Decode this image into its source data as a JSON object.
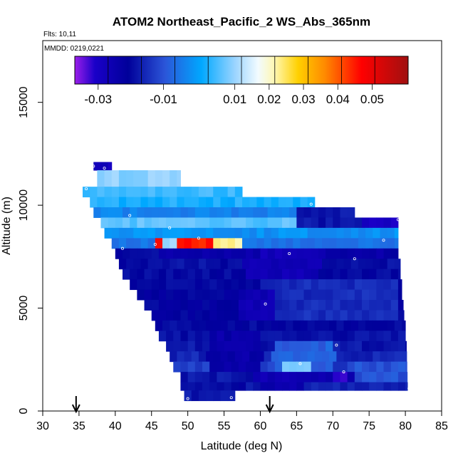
{
  "chart_data": {
    "type": "heatmap",
    "title": "ATOM2 Northeast_Pacific_2 WS_Abs_365nm",
    "flights_note": "Flts: 10,11",
    "date_note": "MMDD: 0219,0221",
    "xlabel": "Latitude (deg N)",
    "ylabel": "Altitude (m)",
    "xlim": [
      30,
      85
    ],
    "ylim": [
      0,
      18000
    ],
    "x_ticks": [
      30,
      35,
      40,
      45,
      50,
      55,
      60,
      65,
      70,
      75,
      80,
      85
    ],
    "y_ticks": [
      0,
      5000,
      10000,
      15000
    ],
    "grid": false,
    "legend": "colorbar-top",
    "colorbar": {
      "tick_labels": [
        "-0.03",
        "-0.01",
        "0.01",
        "0.02",
        "0.03",
        "0.04",
        "0.05"
      ],
      "stops": [
        {
          "pos": 0.0,
          "color": "#9b1eea"
        },
        {
          "pos": 0.06,
          "color": "#1a00c8"
        },
        {
          "pos": 0.16,
          "color": "#00009a"
        },
        {
          "pos": 0.27,
          "color": "#2b55d8"
        },
        {
          "pos": 0.38,
          "color": "#00a8ff"
        },
        {
          "pos": 0.48,
          "color": "#9ad4ff"
        },
        {
          "pos": 0.55,
          "color": "#f2fbff"
        },
        {
          "pos": 0.6,
          "color": "#fff7b0"
        },
        {
          "pos": 0.67,
          "color": "#ffd000"
        },
        {
          "pos": 0.75,
          "color": "#ff8a00"
        },
        {
          "pos": 0.86,
          "color": "#ff0000"
        },
        {
          "pos": 1.0,
          "color": "#a01010"
        }
      ]
    },
    "region": {
      "right_edge": [
        [
          0,
          80.3
        ],
        [
          1000,
          80.3
        ],
        [
          5000,
          80.0
        ],
        [
          9400,
          79.0
        ]
      ],
      "rows": [
        {
          "y0": 11700,
          "y1": 12100,
          "x0": 37.0,
          "x1": 39.5,
          "v": -0.028
        },
        {
          "y0": 10900,
          "y1": 11700,
          "x0": 37.5,
          "x1": 49.0,
          "v": 0.009
        },
        {
          "y0": 10400,
          "y1": 10900,
          "x0": 35.5,
          "x1": 57.5,
          "v": 0.004
        },
        {
          "y0": 9900,
          "y1": 10400,
          "x0": 36.5,
          "x1": 67.5,
          "v": 0.002
        },
        {
          "y0": 9400,
          "y1": 9900,
          "x0": 37.0,
          "x1": 73.0,
          "v": -0.004
        },
        {
          "y0": 8900,
          "y1": 9400,
          "x0": 38.0,
          "x1": 79.0,
          "v": 0.006
        },
        {
          "y0": 8400,
          "y1": 8900,
          "x0": 38.5,
          "x1": 79.0,
          "v": -0.002
        },
        {
          "y0": 7900,
          "y1": 8400,
          "x0": 39.5,
          "x1": 79.0,
          "v": -0.006
        },
        {
          "y0": 7400,
          "y1": 7900,
          "x0": 40.0,
          "x1": 79.0,
          "v": -0.024
        },
        {
          "y0": 6900,
          "y1": 7400,
          "x0": 40.5,
          "x1": 79.3,
          "v": -0.019
        },
        {
          "y0": 6400,
          "y1": 6900,
          "x0": 41.0,
          "x1": 79.3,
          "v": -0.02
        },
        {
          "y0": 5900,
          "y1": 6400,
          "x0": 42.0,
          "x1": 79.5,
          "v": -0.02
        },
        {
          "y0": 5400,
          "y1": 5900,
          "x0": 43.0,
          "x1": 79.5,
          "v": -0.021
        },
        {
          "y0": 4900,
          "y1": 5400,
          "x0": 44.0,
          "x1": 79.7,
          "v": -0.021
        },
        {
          "y0": 4400,
          "y1": 4900,
          "x0": 45.0,
          "x1": 79.8,
          "v": -0.021
        },
        {
          "y0": 3900,
          "y1": 4400,
          "x0": 45.5,
          "x1": 80.0,
          "v": -0.02
        },
        {
          "y0": 3400,
          "y1": 3900,
          "x0": 46.0,
          "x1": 80.0,
          "v": -0.019
        },
        {
          "y0": 2900,
          "y1": 3400,
          "x0": 47.0,
          "x1": 80.2,
          "v": -0.018
        },
        {
          "y0": 2400,
          "y1": 2900,
          "x0": 47.5,
          "x1": 80.2,
          "v": -0.016
        },
        {
          "y0": 1900,
          "y1": 2400,
          "x0": 48.0,
          "x1": 80.3,
          "v": -0.013
        },
        {
          "y0": 1400,
          "y1": 1900,
          "x0": 49.0,
          "x1": 80.3,
          "v": -0.018
        },
        {
          "y0": 1000,
          "y1": 1400,
          "x0": 49.0,
          "x1": 80.3,
          "v": -0.017
        },
        {
          "y0": 500,
          "y1": 1000,
          "x0": 49.5,
          "x1": 56.5,
          "v": -0.018
        }
      ],
      "anomalies": [
        {
          "x0": 46.0,
          "x1": 56.0,
          "y0": 8100,
          "y1": 8600,
          "v": 0.045
        },
        {
          "x0": 46.5,
          "x1": 48.5,
          "y0": 8100,
          "y1": 8600,
          "v": 0.01
        },
        {
          "x0": 54.0,
          "x1": 57.0,
          "y0": 8100,
          "y1": 8600,
          "v": 0.022
        },
        {
          "x0": 62.0,
          "x1": 66.0,
          "y0": 7400,
          "y1": 7900,
          "v": -0.031
        },
        {
          "x0": 60.0,
          "x1": 68.0,
          "y0": 7400,
          "y1": 7900,
          "v": -0.028
        },
        {
          "x0": 58.0,
          "x1": 68.0,
          "y0": 6400,
          "y1": 7400,
          "v": -0.027
        },
        {
          "x0": 40.0,
          "x1": 46.0,
          "y0": 6900,
          "y1": 7900,
          "v": -0.02
        },
        {
          "x0": 65.0,
          "x1": 77.0,
          "y0": 9000,
          "y1": 9800,
          "v": -0.018
        },
        {
          "x0": 74.0,
          "x1": 79.0,
          "y0": 8900,
          "y1": 9400,
          "v": -0.03
        },
        {
          "x0": 60.0,
          "x1": 79.0,
          "y0": 4500,
          "y1": 6400,
          "v": -0.015
        },
        {
          "x0": 57.0,
          "x1": 62.0,
          "y0": 4500,
          "y1": 6000,
          "v": -0.026
        },
        {
          "x0": 53.0,
          "x1": 60.0,
          "y0": 2000,
          "y1": 4000,
          "v": -0.024
        },
        {
          "x0": 62.0,
          "x1": 70.0,
          "y0": 1900,
          "y1": 3200,
          "v": -0.008
        },
        {
          "x0": 63.0,
          "x1": 67.0,
          "y0": 1900,
          "y1": 2400,
          "v": 0.008
        },
        {
          "x0": 59.0,
          "x1": 77.0,
          "y0": 1400,
          "y1": 1900,
          "v": -0.026
        },
        {
          "x0": 70.5,
          "x1": 72.0,
          "y0": 1400,
          "y1": 1900,
          "v": -0.032
        },
        {
          "x0": 73.0,
          "x1": 80.3,
          "y0": 1400,
          "y1": 2400,
          "v": -0.01
        },
        {
          "x0": 49.0,
          "x1": 58.0,
          "y0": 1000,
          "y1": 1400,
          "v": -0.02
        },
        {
          "x0": 60.0,
          "x1": 66.0,
          "y0": 1000,
          "y1": 1400,
          "v": -0.025
        }
      ]
    },
    "sample_points": [
      {
        "x": 37.0,
        "y": 11900
      },
      {
        "x": 38.5,
        "y": 11800
      },
      {
        "x": 36.0,
        "y": 10800
      },
      {
        "x": 42.0,
        "y": 9500
      },
      {
        "x": 47.5,
        "y": 8900
      },
      {
        "x": 45.5,
        "y": 8100
      },
      {
        "x": 51.5,
        "y": 8400
      },
      {
        "x": 41.0,
        "y": 7900
      },
      {
        "x": 64.0,
        "y": 7650
      },
      {
        "x": 67.0,
        "y": 10050
      },
      {
        "x": 79.0,
        "y": 9300
      },
      {
        "x": 77.0,
        "y": 8300
      },
      {
        "x": 73.0,
        "y": 7400
      },
      {
        "x": 60.7,
        "y": 5200
      },
      {
        "x": 70.5,
        "y": 3200
      },
      {
        "x": 65.5,
        "y": 2300
      },
      {
        "x": 71.5,
        "y": 1900
      },
      {
        "x": 80.5,
        "y": 1100
      },
      {
        "x": 50.0,
        "y": 600
      },
      {
        "x": 56.0,
        "y": 650
      }
    ],
    "arrows_x": [
      34.6,
      61.3
    ]
  }
}
